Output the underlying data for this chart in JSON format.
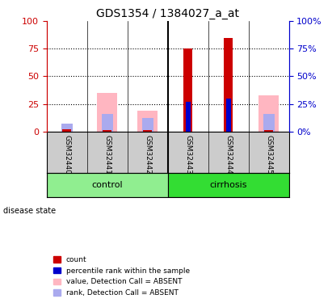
{
  "title": "GDS1354 / 1384027_a_at",
  "samples": [
    "GSM32440",
    "GSM32441",
    "GSM32442",
    "GSM32443",
    "GSM32444",
    "GSM32445"
  ],
  "red_bars": [
    2,
    0,
    0,
    75,
    85,
    0
  ],
  "blue_bars": [
    0,
    0,
    0,
    27,
    30,
    0
  ],
  "pink_bars": [
    0,
    35,
    19,
    0,
    0,
    33
  ],
  "lightblue_bars": [
    7,
    16,
    12,
    0,
    0,
    16
  ],
  "ylim": [
    0,
    100
  ],
  "yticks": [
    0,
    25,
    50,
    75,
    100
  ],
  "left_axis_color": "#CC0000",
  "right_axis_color": "#0000CC",
  "legend_colors": [
    "#CC0000",
    "#0000CC",
    "#FFB6C1",
    "#AAAAEE"
  ],
  "legend_labels": [
    "count",
    "percentile rank within the sample",
    "value, Detection Call = ABSENT",
    "rank, Detection Call = ABSENT"
  ],
  "disease_state_label": "disease state",
  "sample_box_color": "#CCCCCC",
  "control_color": "#90EE90",
  "cirrhosis_color": "#33DD33",
  "plot_bg_color": "#FFFFFF"
}
